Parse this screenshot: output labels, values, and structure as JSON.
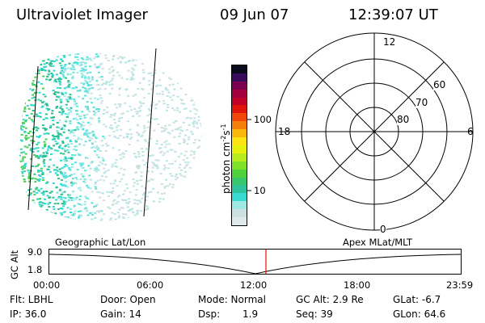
{
  "header": {
    "title": "Ultraviolet Imager",
    "date": "09 Jun 07",
    "time": "12:39:07 UT"
  },
  "colorbar": {
    "label": "photon cm",
    "label_sup1": "-2",
    "label_mid": "s",
    "label_sup2": "-1",
    "ticks": [
      "100",
      "10"
    ],
    "scale": "log",
    "colors": [
      "#dfe8ea",
      "#cfe0e3",
      "#9fe8e3",
      "#39d9cf",
      "#2fc39b",
      "#37c66a",
      "#4fd13b",
      "#7fe02a",
      "#b9ec1e",
      "#e6f20e",
      "#fde311",
      "#fbb80c",
      "#f57f0a",
      "#f0470a",
      "#e1140c",
      "#c30026",
      "#a3003e",
      "#7b0052",
      "#3a0b5c",
      "#0b0a1c"
    ]
  },
  "polar": {
    "labels": {
      "top": "12",
      "left": "18",
      "right": "6",
      "bottom": "0"
    },
    "lat_labels": [
      "60",
      "70",
      "80"
    ]
  },
  "timeline": {
    "left_title": "Geographic Lat/Lon",
    "right_title": "Apex MLat/MLT",
    "y_axis_label": "GC Alt",
    "y_ticks": [
      "9.0",
      "1.8"
    ],
    "x_ticks": [
      "00:00",
      "06:00",
      "12:00",
      "18:00",
      "23:59"
    ],
    "marker_color": "#ff0000"
  },
  "footer": {
    "flt": "Flt: LBHL",
    "door": "Door: Open",
    "mode": "Mode: Normal",
    "gc_alt": "GC Alt: 2.9 Re",
    "glat": "GLat:  -6.7",
    "ip": "IP: 36.0",
    "gain": "Gain: 14",
    "dsp_label": "Dsp:",
    "dsp_value": "1.9",
    "seq": "Seq: 39",
    "glon": "GLon:  64.6"
  }
}
